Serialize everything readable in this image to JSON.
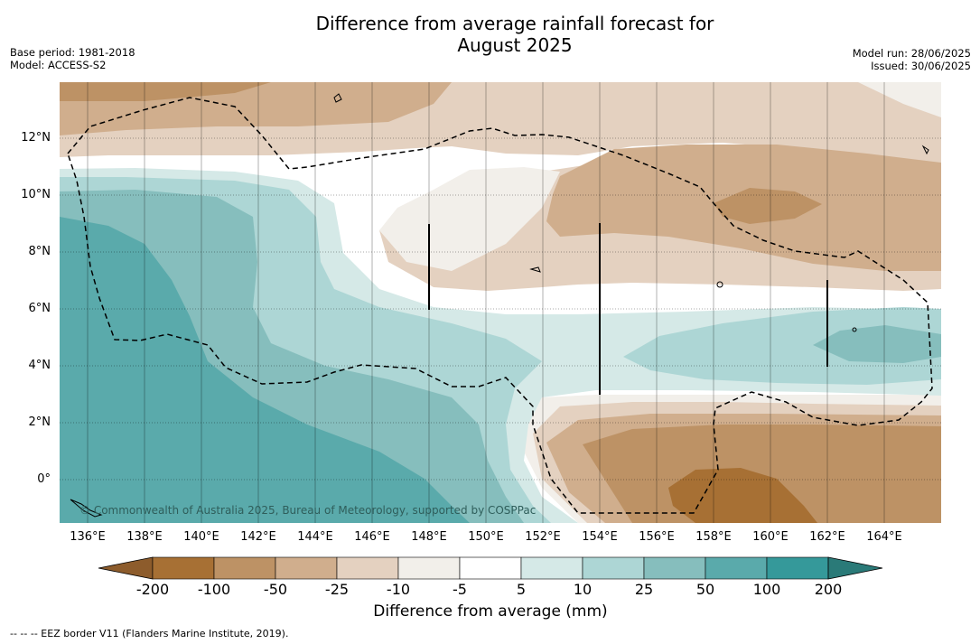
{
  "title_line1": "Difference from average rainfall forecast for",
  "title_line2": "August 2025",
  "meta_left": [
    "Base period: 1981-2018",
    "Model: ACCESS-S2"
  ],
  "meta_right": [
    "Model run: 28/06/2025",
    "Issued: 30/06/2025"
  ],
  "copyright": "© Commonwealth of Australia 2025, Bureau of Meteorology, supported by COSPPac",
  "lat_labels": [
    "12°N",
    "10°N",
    "8°N",
    "6°N",
    "4°N",
    "2°N",
    "0°"
  ],
  "lon_labels": [
    "136°E",
    "138°E",
    "140°E",
    "142°E",
    "144°E",
    "146°E",
    "148°E",
    "150°E",
    "152°E",
    "154°E",
    "156°E",
    "158°E",
    "160°E",
    "162°E",
    "164°E"
  ],
  "colorbar": {
    "title": "Difference from average (mm)",
    "labels": [
      "-200",
      "-100",
      "-50",
      "-25",
      "-10",
      "-5",
      "5",
      "10",
      "25",
      "50",
      "100",
      "200"
    ],
    "colors": [
      "#a77034",
      "#bd9265",
      "#d0ae8d",
      "#e4d1c0",
      "#f2efea",
      "#ffffff",
      "#d5e9e7",
      "#add6d5",
      "#86bebd",
      "#5aaaab",
      "#35999a"
    ],
    "extend_low": "#8d5c2c",
    "extend_high": "#2a7a78"
  },
  "footer": "--  --  -- EEZ border V11 (Flanders Marine Institute, 2019)."
}
